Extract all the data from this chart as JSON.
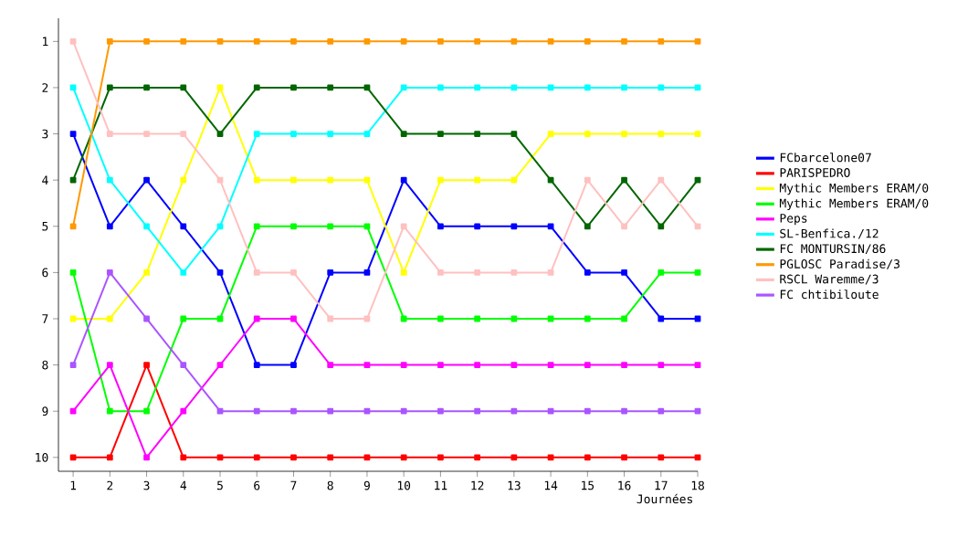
{
  "chart_data": {
    "type": "line",
    "xlabel": "Journées",
    "x": [
      1,
      2,
      3,
      4,
      5,
      6,
      7,
      8,
      9,
      10,
      11,
      12,
      13,
      14,
      15,
      16,
      17,
      18
    ],
    "xlim": [
      0.6,
      18
    ],
    "xticks": [
      1,
      2,
      3,
      4,
      5,
      6,
      7,
      8,
      9,
      10,
      11,
      12,
      13,
      14,
      15,
      16,
      17,
      18
    ],
    "ylim": [
      10.3,
      0.5
    ],
    "yticks": [
      1,
      2,
      3,
      4,
      5,
      6,
      7,
      8,
      9,
      10
    ],
    "grid": false,
    "legend": "right",
    "marker": "square",
    "line_style": "solid",
    "series": [
      {
        "name": "FCbarcelone07",
        "color": "#0000ff",
        "values": [
          3,
          5,
          4,
          5,
          6,
          8,
          8,
          6,
          6,
          4,
          5,
          5,
          5,
          5,
          6,
          6,
          7,
          7
        ]
      },
      {
        "name": "PARISPEDRO",
        "color": "#ff0000",
        "values": [
          10,
          10,
          8,
          10,
          10,
          10,
          10,
          10,
          10,
          10,
          10,
          10,
          10,
          10,
          10,
          10,
          10,
          10
        ]
      },
      {
        "name": "Mythic Members ERAM/0",
        "color": "#ffff00",
        "values": [
          7,
          7,
          6,
          4,
          2,
          4,
          4,
          4,
          4,
          6,
          4,
          4,
          4,
          3,
          3,
          3,
          3,
          3
        ]
      },
      {
        "name": "Mythic Members ERAM/0",
        "color": "#00ff00",
        "values": [
          6,
          9,
          9,
          7,
          7,
          5,
          5,
          5,
          5,
          7,
          7,
          7,
          7,
          7,
          7,
          7,
          6,
          6
        ]
      },
      {
        "name": "Peps",
        "color": "#ff00ff",
        "values": [
          9,
          8,
          10,
          9,
          8,
          7,
          7,
          8,
          8,
          8,
          8,
          8,
          8,
          8,
          8,
          8,
          8,
          8
        ]
      },
      {
        "name": "SL-Benfica./12",
        "color": "#00ffff",
        "values": [
          2,
          4,
          5,
          6,
          5,
          3,
          3,
          3,
          3,
          2,
          2,
          2,
          2,
          2,
          2,
          2,
          2,
          2
        ]
      },
      {
        "name": "FC MONTURSIN/86",
        "color": "#006600",
        "values": [
          4,
          2,
          2,
          2,
          3,
          2,
          2,
          2,
          2,
          3,
          3,
          3,
          3,
          4,
          5,
          4,
          5,
          4
        ]
      },
      {
        "name": "PGLOSC Paradise/3",
        "color": "#ff9900",
        "values": [
          5,
          1,
          1,
          1,
          1,
          1,
          1,
          1,
          1,
          1,
          1,
          1,
          1,
          1,
          1,
          1,
          1,
          1
        ]
      },
      {
        "name": "RSCL Waremme/3",
        "color": "#ffc0c0",
        "values": [
          1,
          3,
          3,
          3,
          4,
          6,
          6,
          7,
          7,
          5,
          6,
          6,
          6,
          6,
          4,
          5,
          4,
          5
        ]
      },
      {
        "name": "FC chtibiloute",
        "color": "#aa55ff",
        "values": [
          8,
          6,
          7,
          8,
          9,
          9,
          9,
          9,
          9,
          9,
          9,
          9,
          9,
          9,
          9,
          9,
          9,
          9
        ]
      }
    ]
  }
}
